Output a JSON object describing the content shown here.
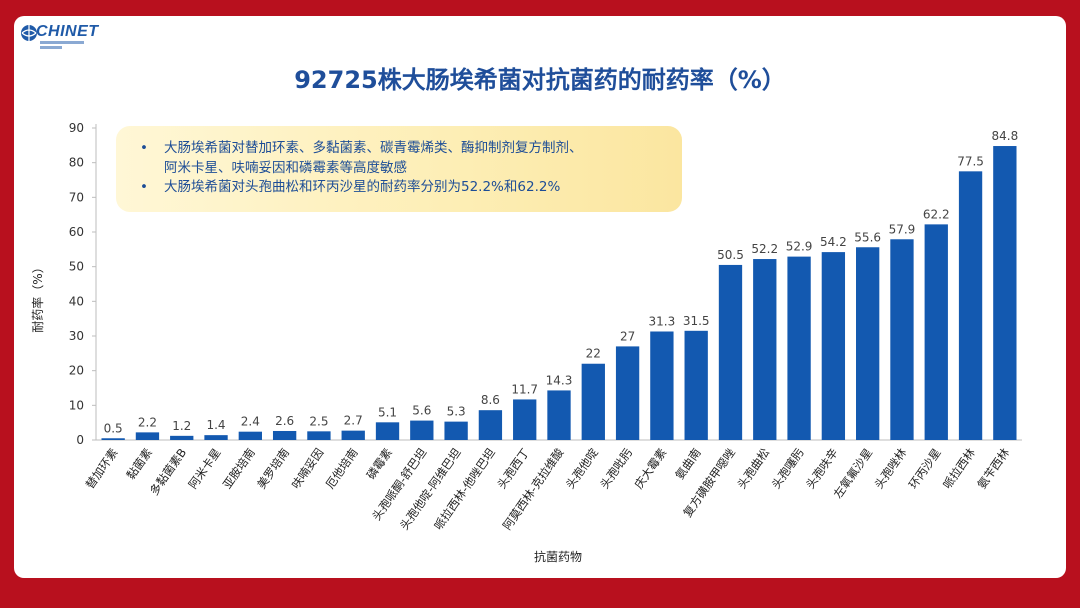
{
  "slide": {
    "brand": "CHINET",
    "title": "92725株大肠埃希菌对抗菌药的耐药率（%）",
    "callout": {
      "bullets": [
        {
          "lines": [
            "大肠埃希菌对替加环素、多黏菌素、碳青霉烯类、酶抑制剂复方制剂、",
            "阿米卡星、呋喃妥因和磷霉素等高度敏感"
          ]
        },
        {
          "lines": [
            "大肠埃希菌对头孢曲松和环丙沙星的耐药率分别为52.2%和62.2%"
          ]
        }
      ]
    }
  },
  "colors": {
    "bar": "#1359b0",
    "frame": "#b8101e",
    "title": "#1f4e9a",
    "callout_text": "#1d4d96"
  },
  "chart_data": {
    "type": "bar",
    "title": "92725株大肠埃希菌对抗菌药的耐药率（%）",
    "xlabel": "抗菌药物",
    "ylabel": "耐药率（%）",
    "ylim": [
      0,
      90
    ],
    "yticks": [
      0,
      10,
      20,
      30,
      40,
      50,
      60,
      70,
      80,
      90
    ],
    "grid": false,
    "categories": [
      "替加环素",
      "黏菌素",
      "多黏菌素B",
      "阿米卡星",
      "亚胺培南",
      "美罗培南",
      "呋喃妥因",
      "厄他培南",
      "磷霉素",
      "头孢哌酮-舒巴坦",
      "头孢他啶-阿维巴坦",
      "哌拉西林-他唑巴坦",
      "头孢西丁",
      "阿莫西林-克拉维酸",
      "头孢他啶",
      "头孢吡肟",
      "庆大霉素",
      "氨曲南",
      "复方磺胺甲噁唑",
      "头孢曲松",
      "头孢噻肟",
      "头孢呋辛",
      "左氧氟沙星",
      "头孢唑林",
      "环丙沙星",
      "哌拉西林",
      "氨苄西林"
    ],
    "values": [
      0.5,
      2.2,
      1.2,
      1.4,
      2.4,
      2.6,
      2.5,
      2.7,
      5.1,
      5.6,
      5.3,
      8.6,
      11.7,
      14.3,
      22,
      27,
      31.3,
      31.5,
      50.5,
      52.2,
      52.9,
      54.2,
      55.6,
      57.9,
      62.2,
      77.5,
      84.8
    ],
    "data_labels": [
      "0.5",
      "2.2",
      "1.2",
      "1.4",
      "2.4",
      "2.6",
      "2.5",
      "2.7",
      "5.1",
      "5.6",
      "5.3",
      "8.6",
      "11.7",
      "14.3",
      "22",
      "27",
      "31.3",
      "31.5",
      "50.5",
      "52.2",
      "52.9",
      "54.2",
      "55.6",
      "57.9",
      "62.2",
      "77.5",
      "84.8"
    ]
  }
}
